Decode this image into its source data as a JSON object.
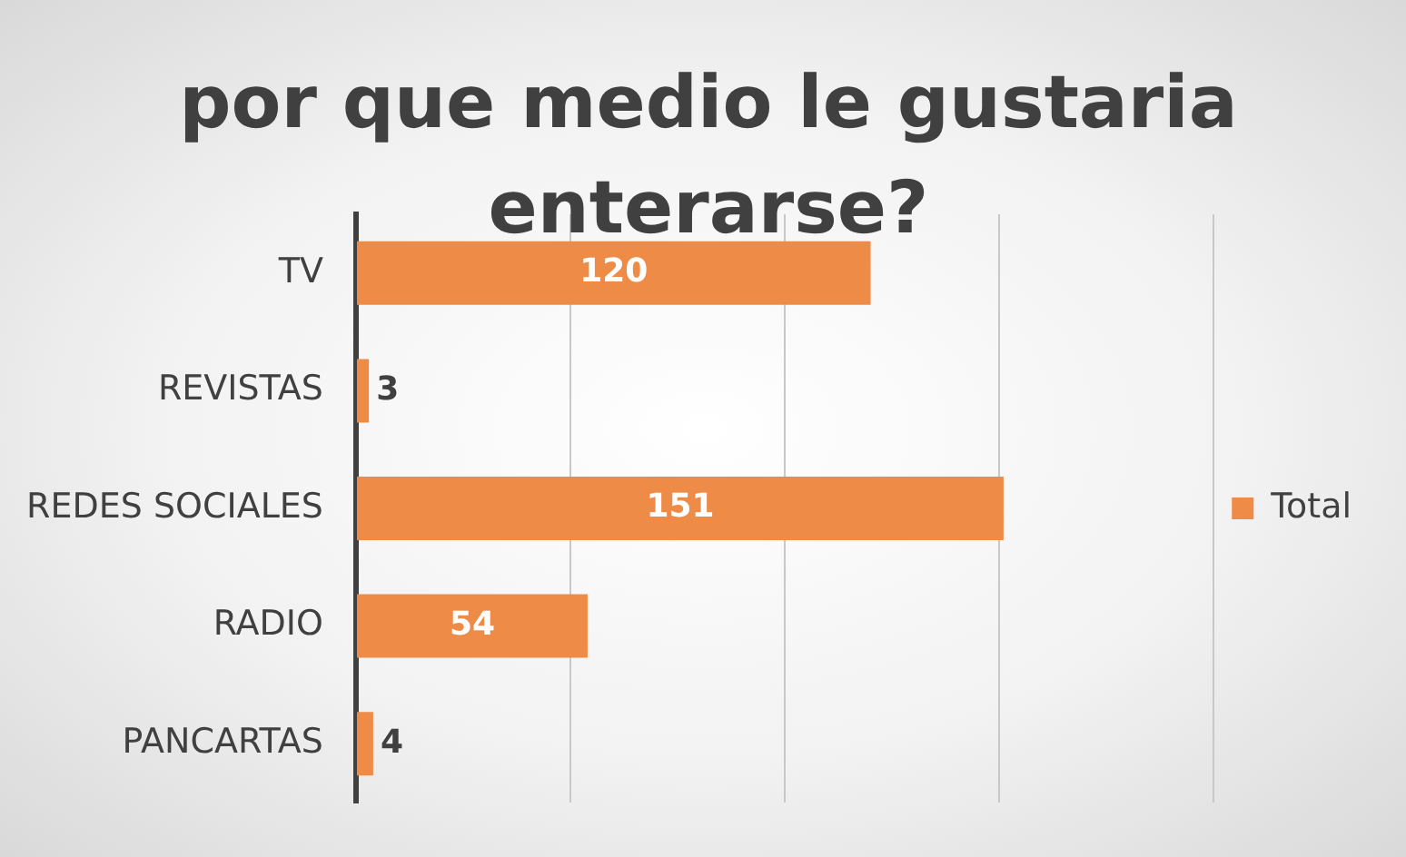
{
  "chart_data": {
    "type": "bar",
    "orientation": "horizontal",
    "title": "por que medio le gustaria enterarse?",
    "categories": [
      "TV",
      "REVISTAS",
      "REDES SOCIALES",
      "RADIO",
      "PANCARTAS"
    ],
    "series": [
      {
        "name": "Total",
        "color": "#ed8b47",
        "values": [
          120,
          3,
          151,
          54,
          4
        ]
      }
    ],
    "xlim": [
      0,
      200
    ],
    "xticks": [
      {
        "value": 0,
        "label": null
      },
      {
        "value": 50,
        "label": null
      },
      {
        "value": 100,
        "label": null
      },
      {
        "value": 150,
        "label": null
      },
      {
        "value": 200,
        "label": null
      }
    ],
    "tick_labels": "y",
    "grid": "x",
    "legend": "right",
    "data_labels": true
  }
}
